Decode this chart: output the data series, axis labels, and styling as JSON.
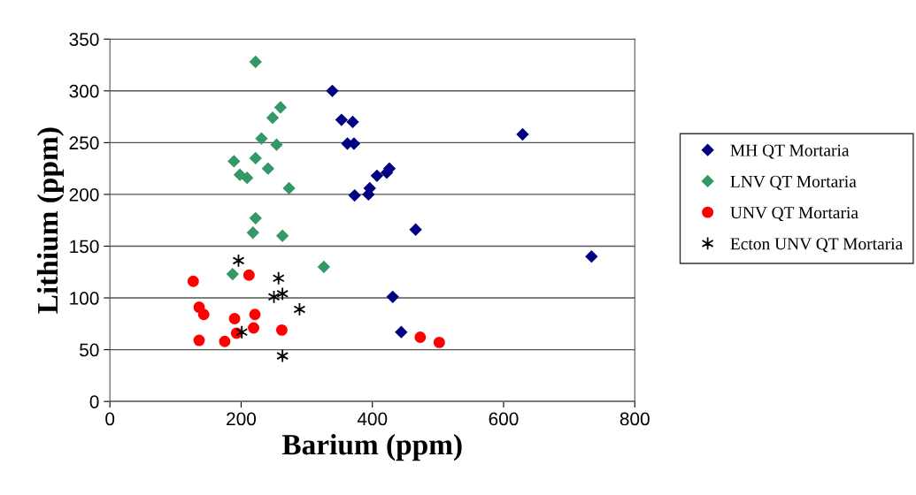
{
  "chart_data": {
    "type": "scatter",
    "xlabel": "Barium (ppm)",
    "ylabel": "Lithium (ppm)",
    "xlim": [
      0,
      800
    ],
    "xticks": [
      0,
      200,
      400,
      600,
      800
    ],
    "ylim": [
      0,
      350
    ],
    "yticks": [
      0,
      50,
      100,
      150,
      200,
      250,
      300,
      350
    ],
    "grid": "y",
    "legend": "right",
    "series": [
      {
        "name": "MH QT Mortaria",
        "color": "#000080",
        "marker": "diamond",
        "x": [
          339,
          353,
          370,
          362,
          372,
          373,
          394,
          396,
          407,
          422,
          426,
          466,
          629,
          734,
          431,
          444
        ],
        "values": [
          300,
          272,
          270,
          249,
          249,
          199,
          200,
          206,
          218,
          221,
          225,
          166,
          258,
          140,
          101,
          67
        ]
      },
      {
        "name": "LNV QT Mortaria",
        "color": "#339966",
        "marker": "diamond",
        "x": [
          222,
          260,
          248,
          231,
          254,
          222,
          189,
          241,
          198,
          209,
          273,
          222,
          218,
          263,
          187,
          326
        ],
        "values": [
          328,
          284,
          274,
          254,
          248,
          235,
          232,
          225,
          219,
          216,
          206,
          177,
          163,
          160,
          123,
          130
        ]
      },
      {
        "name": "UNV QT Mortaria",
        "color": "#ff0000",
        "marker": "circle",
        "x": [
          127,
          212,
          136,
          143,
          221,
          190,
          219,
          262,
          193,
          136,
          175,
          473,
          502
        ],
        "values": [
          116,
          122,
          91,
          84,
          84,
          80,
          71,
          69,
          66,
          59,
          58,
          62,
          57
        ]
      },
      {
        "name": "Ecton UNV QT Mortaria",
        "color": "#000000",
        "marker": "cross",
        "x": [
          196,
          257,
          250,
          263,
          289,
          201,
          263
        ],
        "values": [
          136,
          119,
          101,
          104,
          89,
          67,
          44
        ]
      }
    ]
  }
}
